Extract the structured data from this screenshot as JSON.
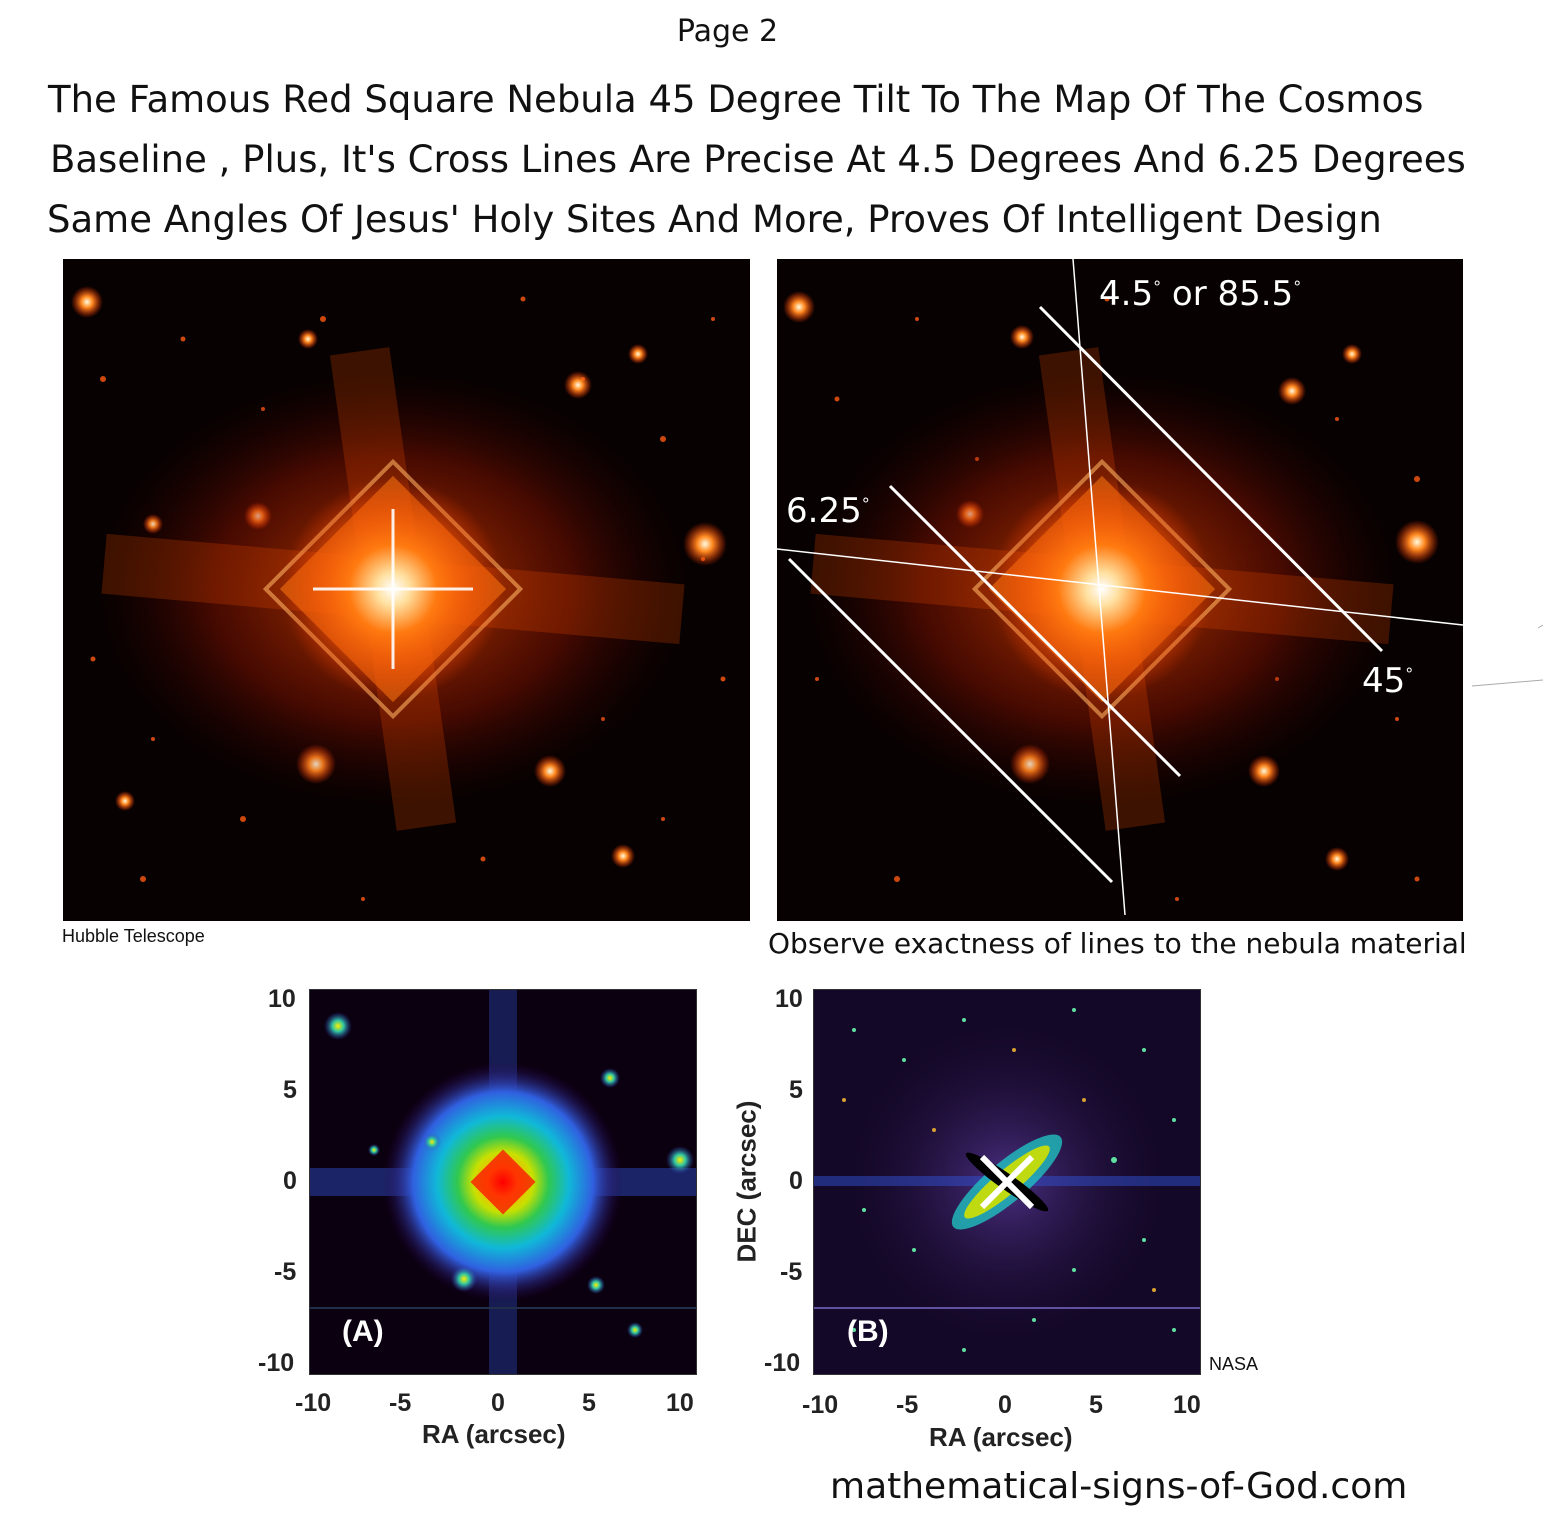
{
  "page": {
    "label": "Page 2"
  },
  "headline": {
    "line1": "The Famous Red Square Nebula 45 Degree Tilt To The Map Of The Cosmos",
    "line2": "Baseline , Plus, It's Cross Lines Are Precise At 4.5 Degrees And 6.25 Degrees",
    "line3": "Same Angles Of Jesus' Holy Sites And More, Proves Of Intelligent Design"
  },
  "photo_left": {
    "caption": "Hubble Telescope"
  },
  "photo_right": {
    "caption": "Observe exactness of lines to the nebula material",
    "annotations": {
      "angle_top": "4.5",
      "angle_top_or": " or 85.5",
      "angle_left": "6.25",
      "angle_right": "45",
      "degree_mark": "°"
    }
  },
  "plot_a": {
    "tag": "(A)",
    "xlabel": "RA (arcsec)",
    "x_ticks": [
      "-10",
      "-5",
      "0",
      "5",
      "10"
    ],
    "y_ticks": [
      "10",
      "5",
      "0",
      "-5",
      "-10"
    ]
  },
  "plot_b": {
    "tag": "(B)",
    "xlabel": "RA (arcsec)",
    "ylabel": "DEC (arcsec)",
    "x_ticks": [
      "-10",
      "-5",
      "0",
      "5",
      "10"
    ],
    "y_ticks": [
      "10",
      "5",
      "0",
      "-5",
      "-10"
    ],
    "credit": "NASA"
  },
  "footer": {
    "website": "mathematical-signs-of-God.com"
  },
  "colors": {
    "nebula_core": "#ffffff",
    "nebula_glow": "#ff5a00",
    "space": "#070101"
  }
}
